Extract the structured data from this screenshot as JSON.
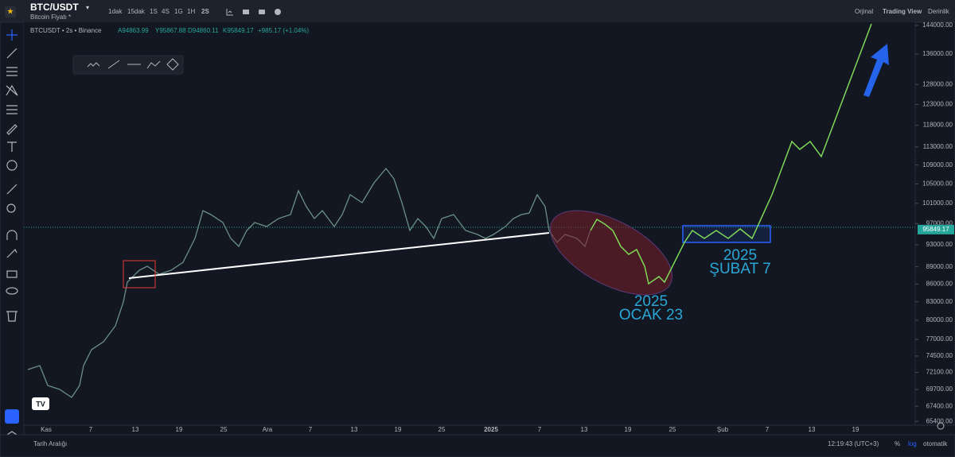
{
  "header": {
    "symbol": "BTC/USDT",
    "subtitle": "Bitcoin Fiyatı *",
    "intervals": [
      "1dak",
      "15dak",
      "1S",
      "4S",
      "1G",
      "1H",
      "2S"
    ],
    "views": [
      "Orjinal",
      "Trading View",
      "Derinlik"
    ]
  },
  "legend": {
    "symbol": "BTCUSDT • 2s • Binance",
    "open": "A94863.99",
    "high": "Y95867.88",
    "low": "D94860.11",
    "close": "K95849.17",
    "change": "+985.17 (+1.04%)"
  },
  "price_axis": {
    "log": true,
    "ylim": [
      64900,
      144900
    ],
    "ticks": [
      {
        "value": 144000,
        "label": "144000.00"
      },
      {
        "value": 136000,
        "label": "136000.00"
      },
      {
        "value": 128000,
        "label": "128000.00"
      },
      {
        "value": 123000,
        "label": "123000.00"
      },
      {
        "value": 118000,
        "label": "118000.00"
      },
      {
        "value": 113000,
        "label": "113000.00"
      },
      {
        "value": 109000,
        "label": "109000.00"
      },
      {
        "value": 105000,
        "label": "105000.00"
      },
      {
        "value": 101000,
        "label": "101000.00"
      },
      {
        "value": 97000,
        "label": "97000.00"
      },
      {
        "value": 93000,
        "label": "93000.00"
      },
      {
        "value": 89000,
        "label": "89000.00"
      },
      {
        "value": 86000,
        "label": "86000.00"
      },
      {
        "value": 83000,
        "label": "83000.00"
      },
      {
        "value": 80000,
        "label": "80000.00"
      },
      {
        "value": 77000,
        "label": "77000.00"
      },
      {
        "value": 74500,
        "label": "74500.00"
      },
      {
        "value": 72100,
        "label": "72100.00"
      },
      {
        "value": 69700,
        "label": "69700.00"
      },
      {
        "value": 67400,
        "label": "67400.00"
      },
      {
        "value": 65400,
        "label": "65400.00"
      }
    ],
    "last_price": {
      "value": 95849.17,
      "label": "95849.17"
    }
  },
  "date_axis": {
    "labels": [
      "Kas",
      "7",
      "13",
      "19",
      "25",
      "Ara",
      "7",
      "13",
      "19",
      "25",
      "2025",
      "7",
      "13",
      "19",
      "25",
      "Şub",
      "7",
      "13",
      "19"
    ]
  },
  "annotations": [
    {
      "year": "2025",
      "date": "OCAK 23"
    },
    {
      "year": "2025",
      "date": "ŞUBAT 7"
    }
  ],
  "footer": {
    "range": "Tarih Aralığı",
    "time": "12:19:43 (UTC+3)",
    "percent": "%",
    "log": "log",
    "auto": "otomatik"
  }
}
